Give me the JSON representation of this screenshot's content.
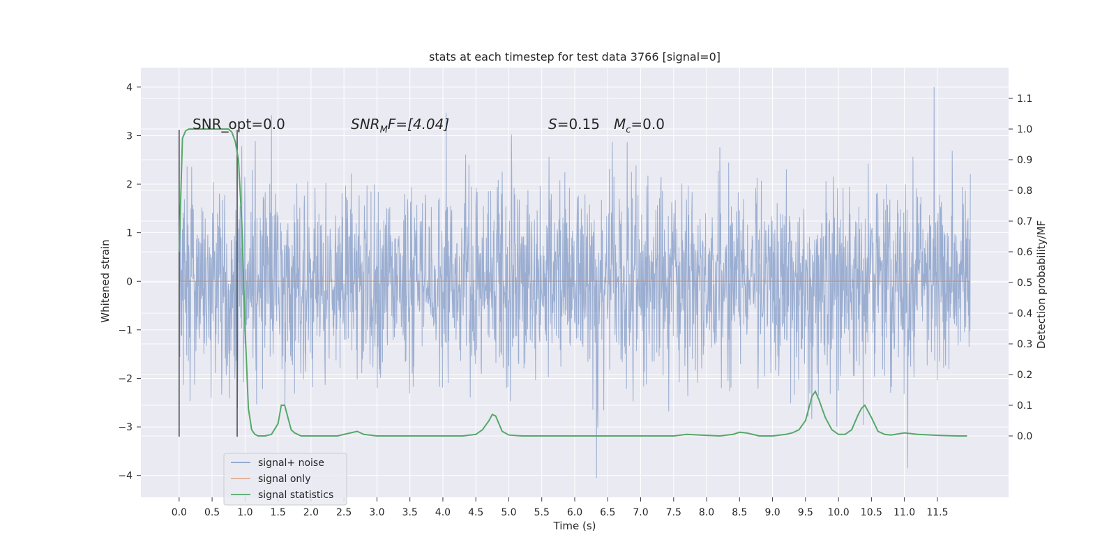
{
  "chart_data": {
    "type": "line",
    "title": "stats at each timestep for test data 3766 [signal=0]",
    "xlabel": "Time (s)",
    "ylabel": "Whitened strain",
    "y2label": "Detection probability/MF",
    "xlim": [
      -0.58,
      12.58
    ],
    "ylim": [
      -4.45,
      4.4
    ],
    "y2lim": [
      -0.2,
      1.2
    ],
    "xticks": [
      0.0,
      0.5,
      1.0,
      1.5,
      2.0,
      2.5,
      3.0,
      3.5,
      4.0,
      4.5,
      5.0,
      5.5,
      6.0,
      6.5,
      7.0,
      7.5,
      8.0,
      8.5,
      9.0,
      9.5,
      10.0,
      10.5,
      11.0,
      11.5
    ],
    "xtick_labels": [
      "0.0",
      "0.5",
      "1.0",
      "1.5",
      "2.0",
      "2.5",
      "3.0",
      "3.5",
      "4.0",
      "4.5",
      "5.0",
      "5.5",
      "6.0",
      "6.5",
      "7.0",
      "7.5",
      "8.0",
      "8.5",
      "9.0",
      "9.5",
      "10.0",
      "10.5",
      "11.0",
      "11.5"
    ],
    "yticks": [
      4,
      3,
      2,
      1,
      0,
      -1,
      -2,
      -3,
      -4
    ],
    "ytick_labels": [
      "4",
      "3",
      "2",
      "1",
      "0",
      "−1",
      "−2",
      "−3",
      "−4"
    ],
    "y2ticks": [
      1.1,
      1.0,
      0.9,
      0.8,
      0.7,
      0.6,
      0.5,
      0.4,
      0.3,
      0.2,
      0.1,
      0.0
    ],
    "y2tick_labels": [
      "1.1",
      "1.0",
      "0.9",
      "0.8",
      "0.7",
      "0.6",
      "0.5",
      "0.4",
      "0.3",
      "0.2",
      "0.1",
      "0.0"
    ],
    "annotations": {
      "snr_opt": "SNR_opt=0.0",
      "snr_mf_main": "SNR",
      "snr_mf_sub": "M",
      "snr_mf_rest": "F=[4.04]",
      "s_main": "S",
      "s_rest": "=0.15",
      "mc_main": "M",
      "mc_sub": "c",
      "mc_rest": "=0.0"
    },
    "grid": true,
    "legend_position": "lower-left",
    "legend": [
      "signal+ noise",
      "signal only",
      "signal statistics"
    ],
    "colors": {
      "background": "#eaeaf2",
      "grid": "#ffffff",
      "noise": "#4c72b0",
      "signal": "#dd8452",
      "stats": "#55a868",
      "marker": "#444444"
    },
    "noise_series": {
      "name": "signal+ noise",
      "t_start": 0.0,
      "t_end": 12.0,
      "amplitude_std": 1.0,
      "seed": 3766,
      "peak_points": [
        {
          "t": 1.4,
          "y": 3.42
        },
        {
          "t": 4.05,
          "y": 3.47
        },
        {
          "t": 11.45,
          "y": 4.0
        },
        {
          "t": 6.33,
          "y": -4.05
        },
        {
          "t": 11.05,
          "y": -3.85
        }
      ]
    },
    "signal_series": {
      "name": "signal only",
      "value": 0.0
    },
    "stats_series": {
      "name": "signal statistics",
      "t": [
        0.0,
        0.05,
        0.1,
        0.15,
        0.2,
        0.3,
        0.4,
        0.5,
        0.6,
        0.7,
        0.75,
        0.8,
        0.85,
        0.9,
        0.95,
        1.0,
        1.05,
        1.1,
        1.15,
        1.2,
        1.3,
        1.4,
        1.5,
        1.55,
        1.6,
        1.65,
        1.7,
        1.75,
        1.8,
        1.85,
        1.9,
        2.0,
        2.2,
        2.4,
        2.6,
        2.7,
        2.8,
        3.0,
        3.5,
        4.0,
        4.3,
        4.5,
        4.6,
        4.7,
        4.75,
        4.8,
        4.85,
        4.9,
        5.0,
        5.2,
        5.5,
        6.0,
        6.5,
        7.0,
        7.5,
        7.7,
        7.9,
        8.2,
        8.4,
        8.5,
        8.6,
        8.8,
        9.0,
        9.2,
        9.3,
        9.4,
        9.5,
        9.6,
        9.65,
        9.7,
        9.8,
        9.9,
        10.0,
        10.1,
        10.2,
        10.3,
        10.35,
        10.4,
        10.5,
        10.6,
        10.7,
        10.8,
        11.0,
        11.2,
        11.5,
        11.8,
        11.95
      ],
      "values": [
        0.6,
        0.97,
        0.995,
        1.0,
        1.0,
        1.0,
        1.0,
        1.0,
        1.0,
        1.0,
        1.0,
        0.99,
        0.96,
        0.9,
        0.7,
        0.35,
        0.09,
        0.02,
        0.005,
        0.0,
        0.0,
        0.005,
        0.04,
        0.1,
        0.1,
        0.06,
        0.02,
        0.01,
        0.005,
        0.0,
        0.0,
        0.0,
        0.0,
        0.0,
        0.01,
        0.015,
        0.005,
        0.0,
        0.0,
        0.0,
        0.0,
        0.005,
        0.02,
        0.05,
        0.07,
        0.065,
        0.04,
        0.015,
        0.003,
        0.0,
        0.0,
        0.0,
        0.0,
        0.0,
        0.0,
        0.005,
        0.003,
        0.0,
        0.005,
        0.012,
        0.01,
        0.0,
        0.0,
        0.005,
        0.01,
        0.02,
        0.05,
        0.13,
        0.145,
        0.12,
        0.06,
        0.02,
        0.005,
        0.005,
        0.02,
        0.07,
        0.09,
        0.1,
        0.06,
        0.015,
        0.005,
        0.003,
        0.01,
        0.005,
        0.002,
        0.0,
        0.0
      ]
    },
    "vertical_markers": {
      "x": [
        0.0,
        0.88
      ],
      "y_range": [
        -3.2,
        3.12
      ]
    }
  }
}
